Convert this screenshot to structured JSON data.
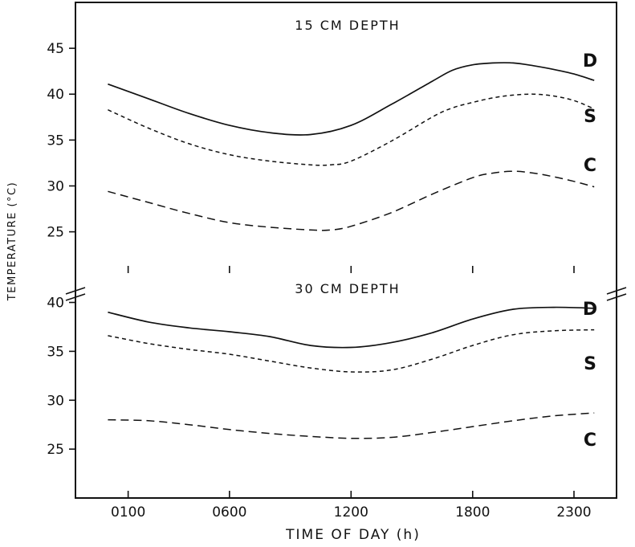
{
  "chart_data": {
    "type": "line",
    "ylabel": "TEMPERATURE (°C)",
    "xlabel": "TIME OF DAY (h)",
    "x_range": [
      -1.6,
      25.1
    ],
    "x_ticks": [
      {
        "value": 1,
        "label": "0100"
      },
      {
        "value": 6,
        "label": "0600"
      },
      {
        "value": 12,
        "label": "1200"
      },
      {
        "value": 18,
        "label": "1800"
      },
      {
        "value": 23,
        "label": "2300"
      }
    ],
    "panels": [
      {
        "title": "15 CM DEPTH",
        "ylim": [
          20.5,
          50
        ],
        "y_ticks": [
          25,
          30,
          35,
          40,
          45
        ],
        "series": [
          {
            "name": "D",
            "label": "D",
            "style": "solid",
            "x": [
              0,
              2,
              4,
              6,
              8,
              10,
              12,
              14,
              16,
              17,
              18,
              19,
              20,
              21,
              22,
              23,
              24
            ],
            "y": [
              41.1,
              39.5,
              37.9,
              36.6,
              35.8,
              35.6,
              36.6,
              38.9,
              41.4,
              42.6,
              43.2,
              43.4,
              43.4,
              43.1,
              42.7,
              42.2,
              41.5
            ]
          },
          {
            "name": "S",
            "label": "S",
            "style": "short-dash",
            "x": [
              0,
              2,
              4,
              6,
              8,
              10,
              11,
              12,
              14,
              16,
              17,
              18,
              19,
              20,
              21,
              22,
              23,
              24
            ],
            "y": [
              38.3,
              36.3,
              34.6,
              33.4,
              32.7,
              32.3,
              32.3,
              32.7,
              34.9,
              37.5,
              38.5,
              39.1,
              39.6,
              39.9,
              40,
              39.8,
              39.3,
              38.4
            ]
          },
          {
            "name": "C",
            "label": "C",
            "style": "long-dash",
            "x": [
              0,
              2,
              4,
              6,
              8,
              10,
              11,
              12,
              14,
              16,
              18,
              19,
              20,
              21,
              22,
              23,
              24
            ],
            "y": [
              29.4,
              28.2,
              27,
              26,
              25.5,
              25.2,
              25.2,
              25.6,
              27.1,
              29.1,
              30.9,
              31.4,
              31.6,
              31.4,
              31,
              30.5,
              29.9
            ]
          }
        ]
      },
      {
        "title": "30 CM DEPTH",
        "ylim": [
          20,
          43
        ],
        "y_ticks": [
          25,
          30,
          35,
          40
        ],
        "series": [
          {
            "name": "D",
            "label": "D",
            "style": "solid",
            "x": [
              0,
              2,
              4,
              6,
              8,
              10,
              12,
              14,
              16,
              18,
              20,
              22,
              24
            ],
            "y": [
              39,
              38,
              37.4,
              37,
              36.5,
              35.6,
              35.4,
              35.9,
              36.9,
              38.3,
              39.3,
              39.5,
              39.4
            ]
          },
          {
            "name": "S",
            "label": "S",
            "style": "short-dash",
            "x": [
              0,
              2,
              4,
              6,
              8,
              10,
              12,
              14,
              16,
              18,
              20,
              22,
              24
            ],
            "y": [
              36.6,
              35.8,
              35.2,
              34.7,
              34,
              33.3,
              32.9,
              33.1,
              34.2,
              35.6,
              36.7,
              37.1,
              37.2
            ]
          },
          {
            "name": "C",
            "label": "C",
            "style": "long-dash",
            "x": [
              0,
              2,
              4,
              6,
              8,
              10,
              12,
              14,
              16,
              18,
              20,
              22,
              24
            ],
            "y": [
              28,
              27.9,
              27.5,
              27,
              26.6,
              26.3,
              26.1,
              26.2,
              26.7,
              27.3,
              27.9,
              28.4,
              28.7
            ]
          }
        ]
      }
    ]
  }
}
